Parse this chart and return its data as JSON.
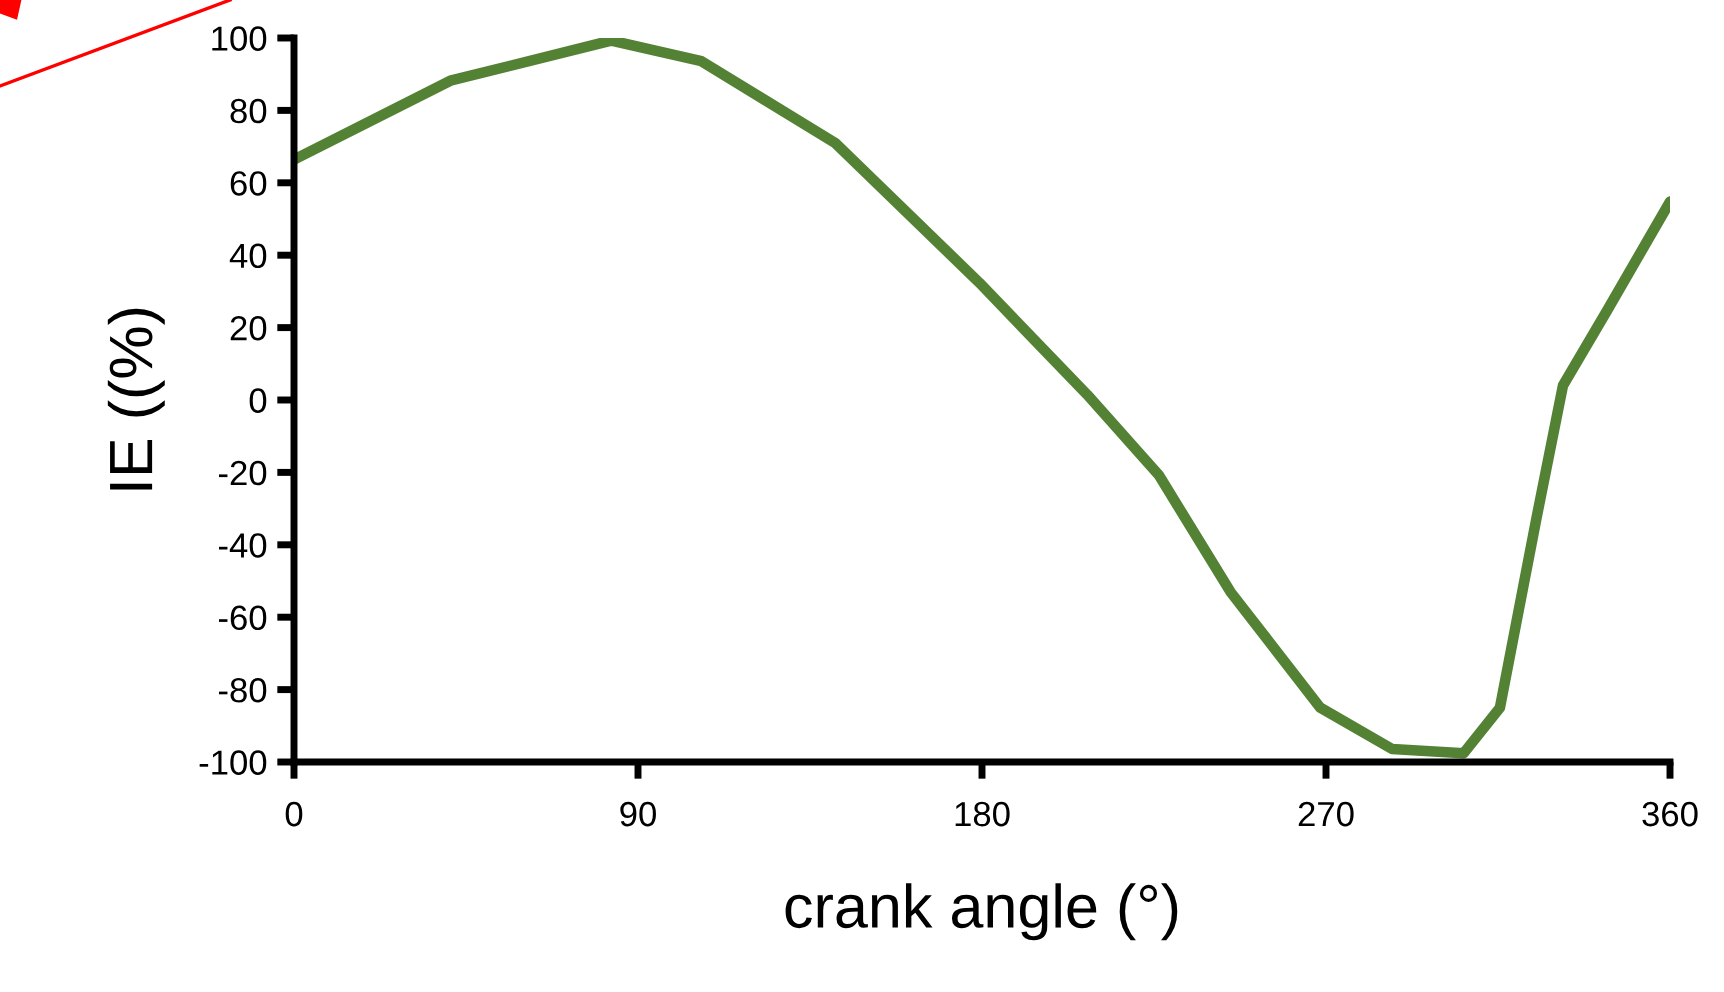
{
  "chart_data": {
    "type": "line",
    "xlabel": "crank angle (°)",
    "ylabel": "IE ((%)",
    "series": [
      {
        "color": "#548235",
        "x": [
          0,
          40.9,
          83,
          106.6,
          141.7,
          179.3,
          207.5,
          226.3,
          245,
          268.5,
          287.3,
          306,
          315.5,
          325,
          332,
          343.7,
          360
        ],
        "values": [
          66.4,
          88.2,
          99.3,
          93.6,
          70.9,
          32.4,
          1.5,
          -20.8,
          -53,
          -85,
          -96.4,
          -97.6,
          -85,
          -33,
          4,
          25,
          54.8
        ]
      }
    ],
    "xlim": [
      0,
      360
    ],
    "xticks": [
      0,
      90,
      180,
      270,
      360
    ],
    "ylim": [
      -100,
      100
    ],
    "yticks": [
      -100,
      -80,
      -60,
      -40,
      -20,
      0,
      20,
      40,
      60,
      80,
      100
    ],
    "grid": false,
    "legend": false,
    "marker": "none",
    "line_style": "solid"
  }
}
